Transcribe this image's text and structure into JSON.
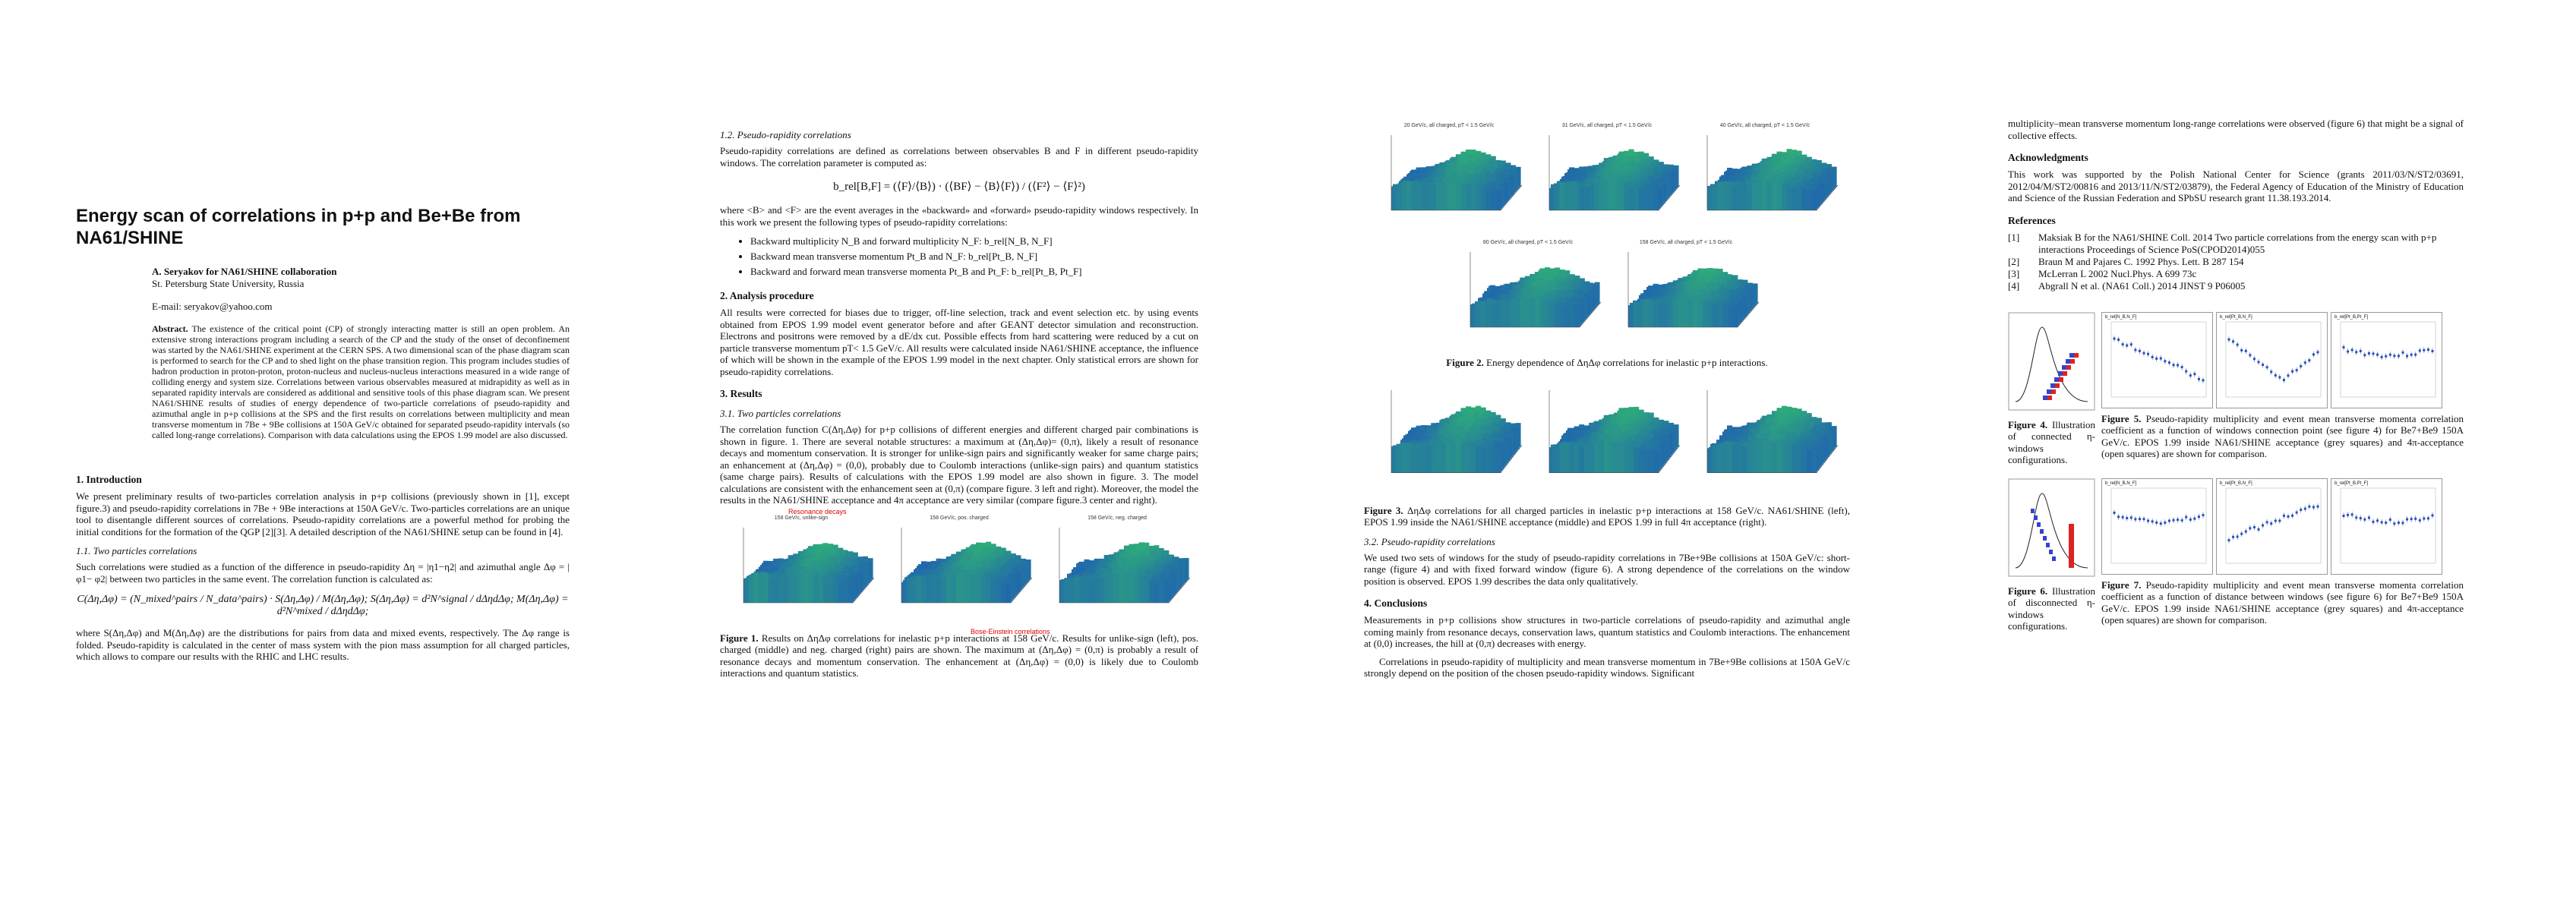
{
  "page1": {
    "title": "Energy scan of correlations in p+p and Be+Be from NA61/SHINE",
    "author": "A.  Seryakov for NA61/SHINE collaboration",
    "affiliation": "St. Petersburg State University, Russia",
    "email": "E-mail: seryakov@yahoo.com",
    "abstract_label": "Abstract.",
    "abstract_text": "The existence of the critical point (CP) of strongly interacting matter is still an open problem. An extensive strong interactions program including a search of the CP and the study of the onset of deconfinement was started by the NA61/SHINE experiment at the CERN SPS. A two dimensional scan of the phase diagram scan is performed to search for the CP and to shed light on the phase transition region. This program includes studies of hadron production in proton-proton, proton-nucleus and nucleus-nucleus interactions measured in a wide range of colliding energy and system size. Correlations between various observables measured at midrapidity as well as in separated rapidity intervals are considered as additional and sensitive tools of this phase diagram scan. We present NA61/SHINE results of studies of energy dependence of two-particle correlations of pseudo-rapidity and azimuthal angle in p+p collisions at the SPS and the first results on correlations between multiplicity and mean transverse momentum in 7Be + 9Be collisions at 150A GeV/c obtained for separated pseudo-rapidity intervals (so called long-range correlations). Comparison with data calculations using the EPOS 1.99 model are also discussed.",
    "sec1_title": "1. Introduction",
    "sec1_text": "We present preliminary results of two-particles correlation analysis in p+p collisions (previously shown in [1], except figure.3) and pseudo-rapidity correlations in 7Be + 9Be interactions at 150A GeV/c. Two-particles correlations are an unique tool to disentangle different sources of correlations. Pseudo-rapidity correlations are a powerful method for probing the initial conditions for the formation of the QGP [2][3]. A detailed description of the NA61/SHINE setup can be found in [4].",
    "sec11_title": "1.1. Two particles correlations",
    "sec11_text": "Such correlations were studied as a function of the difference in pseudo-rapidity Δη = |η1−η2| and azimuthal angle Δφ = |φ1− φ2| between two particles in the same event. The correlation function is calculated as:",
    "eq1": "C(Δη,Δφ) = (N_mixed^pairs / N_data^pairs) · S(Δη,Δφ) / M(Δη,Δφ);  S(Δη,Δφ) = d²N^signal / dΔηdΔφ;  M(Δη,Δφ) = d²N^mixed / dΔηdΔφ;",
    "after_eq": "where S(Δη,Δφ) and M(Δη,Δφ) are the distributions for pairs from data and mixed events, respectively. The Δφ range is folded. Pseudo-rapidity is calculated in the center of mass system with the pion mass assumption for all charged particles, which allows to compare our results with the RHIC and LHC results."
  },
  "page2": {
    "sec12_title": "1.2. Pseudo-rapidity correlations",
    "sec12_text": "Pseudo-rapidity correlations are defined as correlations between observables B and F in different pseudo-rapidity windows. The correlation parameter is computed as:",
    "eq2": "b_rel[B,F] = (⟨F⟩/⟨B⟩) · (⟨BF⟩ − ⟨B⟩⟨F⟩) / (⟨F²⟩ − ⟨F⟩²)",
    "after_eq2": "where <B> and <F> are the event averages in the «backward» and «forward» pseudo-rapidity windows respectively. In this work we present the following types of pseudo-rapidity correlations:",
    "bullets": [
      "Backward multiplicity N_B and forward multiplicity N_F: b_rel[N_B, N_F]",
      "Backward mean transverse momentum Pt_B and N_F: b_rel[Pt_B, N_F]",
      "Backward and forward mean transverse momenta Pt_B and Pt_F: b_rel[Pt_B, Pt_F]"
    ],
    "sec2_title": "2. Analysis procedure",
    "sec2_text": "All results were corrected for biases due to trigger, off-line selection, track and event selection etc. by using events obtained from EPOS 1.99 model event generator before and after GEANT detector simulation and reconstruction. Electrons and positrons were removed by a dE/dx cut. Possible effects from hard scattering were reduced by a cut on particle transverse momentum pT< 1.5 GeV/c. All results were calculated inside NA61/SHINE acceptance, the influence of which will be shown in the example of the EPOS 1.99 model in the next chapter. Only statistical errors are shown for pseudo-rapidity correlations.",
    "sec3_title": "3. Results",
    "sec31_title": "3.1. Two particles correlations",
    "sec31_text": "The correlation function C(Δη,Δφ) for p+p collisions of different energies and different charged pair combinations is shown in figure. 1. There are several notable structures: a maximum at (Δη,Δφ)= (0,π), likely a result of resonance decays and momentum conservation. It is stronger for unlike-sign pairs and significantly weaker for same charge pairs; an enhancement at (Δη,Δφ) = (0,0), probably due to Coulomb interactions (unlike-sign pairs) and quantum statistics (same charge pairs). Results of calculations with the EPOS 1.99 model are also shown in figure. 3. The model calculations are consistent with the enhancement seen at (0,π) (compare figure. 3 left and right). Moreover, the model the results in the NA61/SHINE acceptance and 4π acceptance are very similar (compare figure.3 center and right).",
    "fig1_titles": [
      "158 GeV/c, unlike-sign",
      "158 GeV/c, pos. charged",
      "158 GeV/c, neg. charged"
    ],
    "fig1_annot1": "Resonance decays",
    "fig1_annot2": "Bose-Einstein correlations",
    "fig1_caption_label": "Figure 1.",
    "fig1_caption": "Results on ΔηΔφ correlations for inelastic p+p interactions at 158 GeV/c. Results for unlike-sign (left), pos. charged (middle) and neg. charged (right) pairs are shown. The maximum at (Δη,Δφ) = (0,π) is probably a result of resonance decays and momentum conservation. The enhancement at (Δη,Δφ) = (0,0) is likely due to Coulomb interactions and quantum statistics."
  },
  "page3": {
    "fig2_titles": [
      "20 GeV/c, all charged, pT < 1.5 GeV/c",
      "31 GeV/c, all charged, pT < 1.5 GeV/c",
      "40 GeV/c, all charged, pT < 1.5 GeV/c",
      "80 GeV/c, all charged, pT < 1.5 GeV/c",
      "158 GeV/c, all charged, pT < 1.5 GeV/c"
    ],
    "fig2_caption_label": "Figure 2.",
    "fig2_caption": "Energy dependence of ΔηΔφ correlations for inelastic p+p interactions.",
    "fig3_caption_label": "Figure 3.",
    "fig3_caption": "ΔηΔφ correlations for all charged particles in inelastic p+p interactions at 158 GeV/c. NA61/SHINE (left), EPOS 1.99 inside the NA61/SHINE acceptance (middle) and EPOS 1.99 in full 4π acceptance (right).",
    "sec32_title": "3.2. Pseudo-rapidity correlations",
    "sec32_text": "We used two sets of windows for the study of pseudo-rapidity correlations in 7Be+9Be collisions at 150A GeV/c: short-range (figure 4) and with fixed forward window (figure 6). A strong dependence of the correlations on the window position is observed. EPOS 1.99 describes the data only qualitatively.",
    "sec4_title": "4. Conclusions",
    "sec4_text1": "Measurements in p+p collisions show structures in two-particle correlations of pseudo-rapidity and azimuthal angle coming mainly from resonance decays, conservation laws, quantum statistics and Coulomb interactions. The enhancement at (0,0) increases, the hill at (0,π) decreases with energy.",
    "sec4_text2": "Correlations in pseudo-rapidity of multiplicity and mean transverse momentum in 7Be+9Be collisions at 150A GeV/c strongly depend on the position of the chosen pseudo-rapidity windows. Significant"
  },
  "page4": {
    "cont_text": "multiplicity–mean transverse momentum long-range correlations were observed (figure 6) that might be a signal of collective effects.",
    "ack_title": "Acknowledgments",
    "ack_text": "This work was supported by the Polish National Center for Science (grants 2011/03/N/ST2/03691, 2012/04/M/ST2/00816 and 2013/11/N/ST2/03879), the Federal Agency of Education of the Ministry of Education and Science of the Russian Federation and SPbSU research grant 11.38.193.2014.",
    "ref_title": "References",
    "refs": [
      {
        "n": "[1]",
        "t": "Maksiak B for the NA61/SHINE Coll. 2014 Two particle correlations from the energy scan with p+p interactions  Proceedings of Science PoS(CPOD2014)055"
      },
      {
        "n": "[2]",
        "t": "Braun M and Pajares C. 1992 Phys. Lett. B 287 154"
      },
      {
        "n": "[3]",
        "t": "McLerran L 2002 Nucl.Phys. A 699 73c"
      },
      {
        "n": "[4]",
        "t": "Abgrall N et al. (NA61 Coll.) 2014 JINST 9 P06005"
      }
    ],
    "fig4_caption_label": "Figure 4.",
    "fig4_caption": "Illustration of connected η-windows configurations.",
    "fig5_caption_label": "Figure 5.",
    "fig5_caption": "Pseudo-rapidity multiplicity and event mean transverse momenta correlation coefficient as a function of windows connection point (see figure 4) for Be7+Be9 150A GeV/c.  EPOS 1.99 inside NA61/SHINE acceptance (grey squares) and 4π-acceptance (open squares) are shown for comparison.",
    "fig6_caption_label": "Figure 6.",
    "fig6_caption": "Illustration of disconnected η-windows configurations.",
    "fig7_caption_label": "Figure 7.",
    "fig7_caption": "Pseudo-rapidity multiplicity and event mean transverse momenta correlation coefficient as a function of distance between windows (see figure 6) for Be7+Be9 150A GeV/c.  EPOS 1.99 inside NA61/SHINE acceptance (grey squares) and 4π-acceptance (open squares) are shown for comparison.",
    "small_plot_labels": [
      "b_rel[N_B,N_F]",
      "b_rel[Pt_B,N_F]",
      "b_rel[Pt_B,Pt_F]"
    ]
  }
}
